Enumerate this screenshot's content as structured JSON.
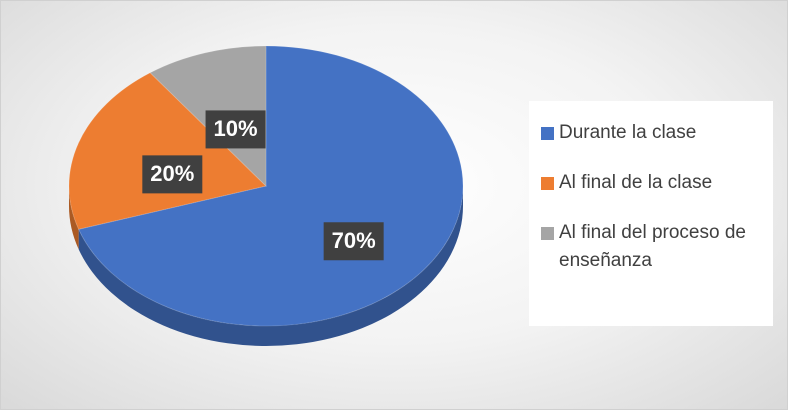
{
  "chart_data": {
    "type": "pie",
    "categories": [
      "Durante la clase",
      "Al final de la clase",
      "Al final del proceso de enseñanza"
    ],
    "values": [
      70,
      20,
      10
    ],
    "value_labels": [
      "70%",
      "20%",
      "10%"
    ],
    "colors": [
      "#4472c4",
      "#ed7d31",
      "#a5a5a5"
    ],
    "legend": "right"
  }
}
